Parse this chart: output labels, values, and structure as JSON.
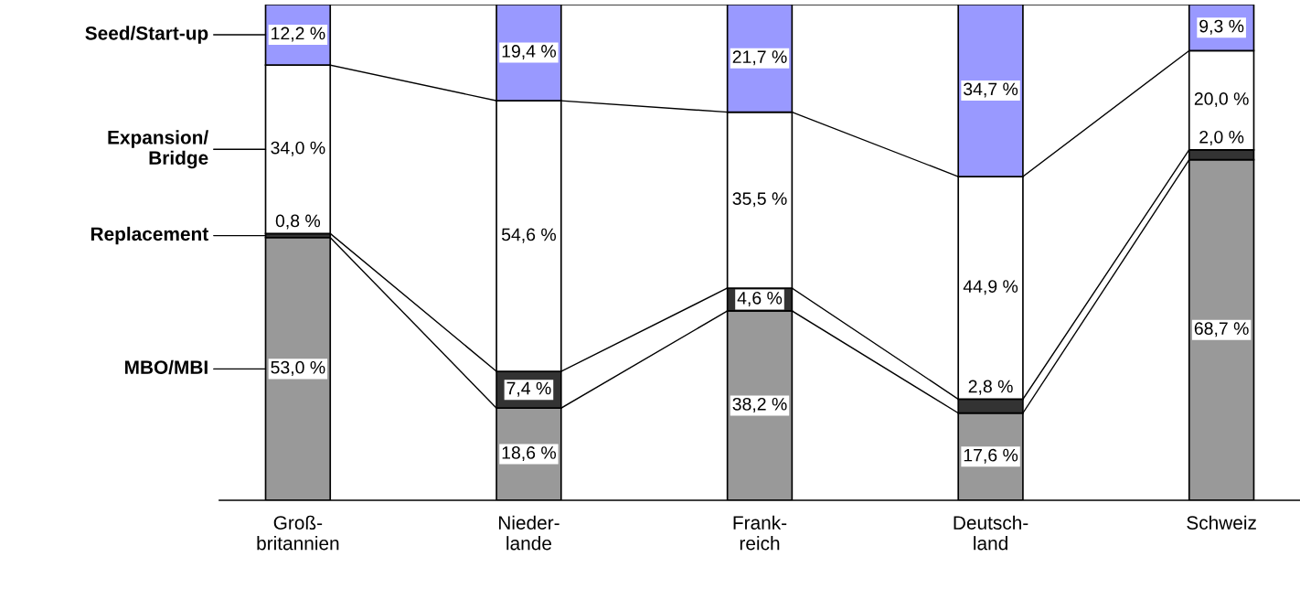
{
  "chart_data": {
    "type": "bar",
    "stacked": true,
    "relative": false,
    "legend": "left",
    "categories": [
      "Groß-\nbritannien",
      "Nieder-\nlande",
      "Frank-\nreich",
      "Deutsch-\nland",
      "Schweiz"
    ],
    "ylim": [
      0,
      100
    ],
    "series": [
      {
        "name": "MBO/MBI",
        "color": "#999999",
        "values": [
          53.0,
          18.6,
          38.2,
          17.6,
          68.7
        ],
        "value_labels": [
          "53,0 %",
          "18,6 %",
          "38,2 %",
          "17,6 %",
          "68,7 %"
        ]
      },
      {
        "name": "Replacement",
        "color": "#333333",
        "values": [
          0.8,
          7.4,
          4.6,
          2.8,
          2.0
        ],
        "value_labels": [
          "0,8 %",
          "7,4 %",
          "4,6 %",
          "2,8 %",
          "2,0 %"
        ]
      },
      {
        "name": "Expansion/\nBridge",
        "color": "#ffffff",
        "values": [
          34.0,
          54.6,
          35.5,
          44.9,
          20.0
        ],
        "value_labels": [
          "34,0 %",
          "54,6 %",
          "35,5 %",
          "44,9 %",
          "20,0 %"
        ]
      },
      {
        "name": "Seed/Start-up",
        "color": "#9999ff",
        "values": [
          12.2,
          19.4,
          21.7,
          34.7,
          9.3
        ],
        "value_labels": [
          "12,2 %",
          "19,4 %",
          "21,7 %",
          "34,7 %",
          "9,3 %"
        ]
      }
    ]
  }
}
